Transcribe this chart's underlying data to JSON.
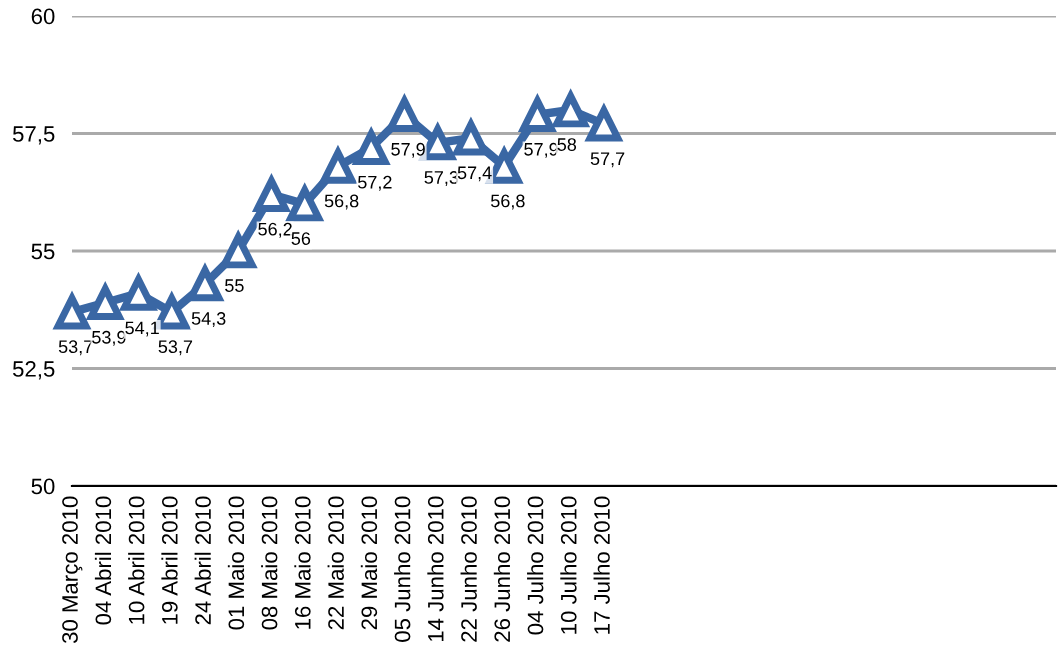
{
  "chart_data": {
    "type": "line",
    "categories": [
      "30 Março 2010",
      "04 Abril 2010",
      "10 Abril 2010",
      "19 Abril 2010",
      "24 Abril 2010",
      "01 Maio 2010",
      "08 Maio 2010",
      "16 Maio 2010",
      "22 Maio 2010",
      "29 Maio 2010",
      "05 Junho 2010",
      "14 Junho 2010",
      "22 Junho 2010",
      "26 Junho 2010",
      "04 Julho 2010",
      "10 Julho 2010",
      "17 Julho 2010",
      null,
      null,
      null,
      null,
      null,
      null,
      null,
      null,
      null,
      null,
      null,
      null,
      null
    ],
    "series": [
      {
        "color": "#3a67a4",
        "values": [
          53.7,
          53.9,
          54.1,
          53.7,
          54.3,
          55,
          56.2,
          56,
          56.8,
          57.2,
          57.9,
          57.3,
          57.4,
          56.8,
          57.9,
          58,
          57.7,
          null,
          null,
          null,
          null,
          null,
          null,
          null,
          null,
          null,
          null,
          null,
          null,
          null
        ],
        "value_labels": [
          "53,7",
          "53,9",
          "54,1",
          "53,7",
          "54,3",
          "55",
          "56,2",
          "56",
          "56,8",
          "57,2",
          "57,9",
          "57,3",
          "57,4",
          "56,8",
          "57,9",
          "58",
          "57,7",
          null,
          null,
          null,
          null,
          null,
          null,
          null,
          null,
          null,
          null,
          null,
          null,
          null
        ]
      }
    ],
    "ylim": [
      50,
      60
    ],
    "yticks": [
      50,
      {
        "value": 52.5,
        "label": "52,5"
      },
      55,
      {
        "value": 57.5,
        "label": "57,5"
      },
      60
    ],
    "grid": "y",
    "marker": "triangle",
    "line_style": "solid",
    "legend": false
  }
}
